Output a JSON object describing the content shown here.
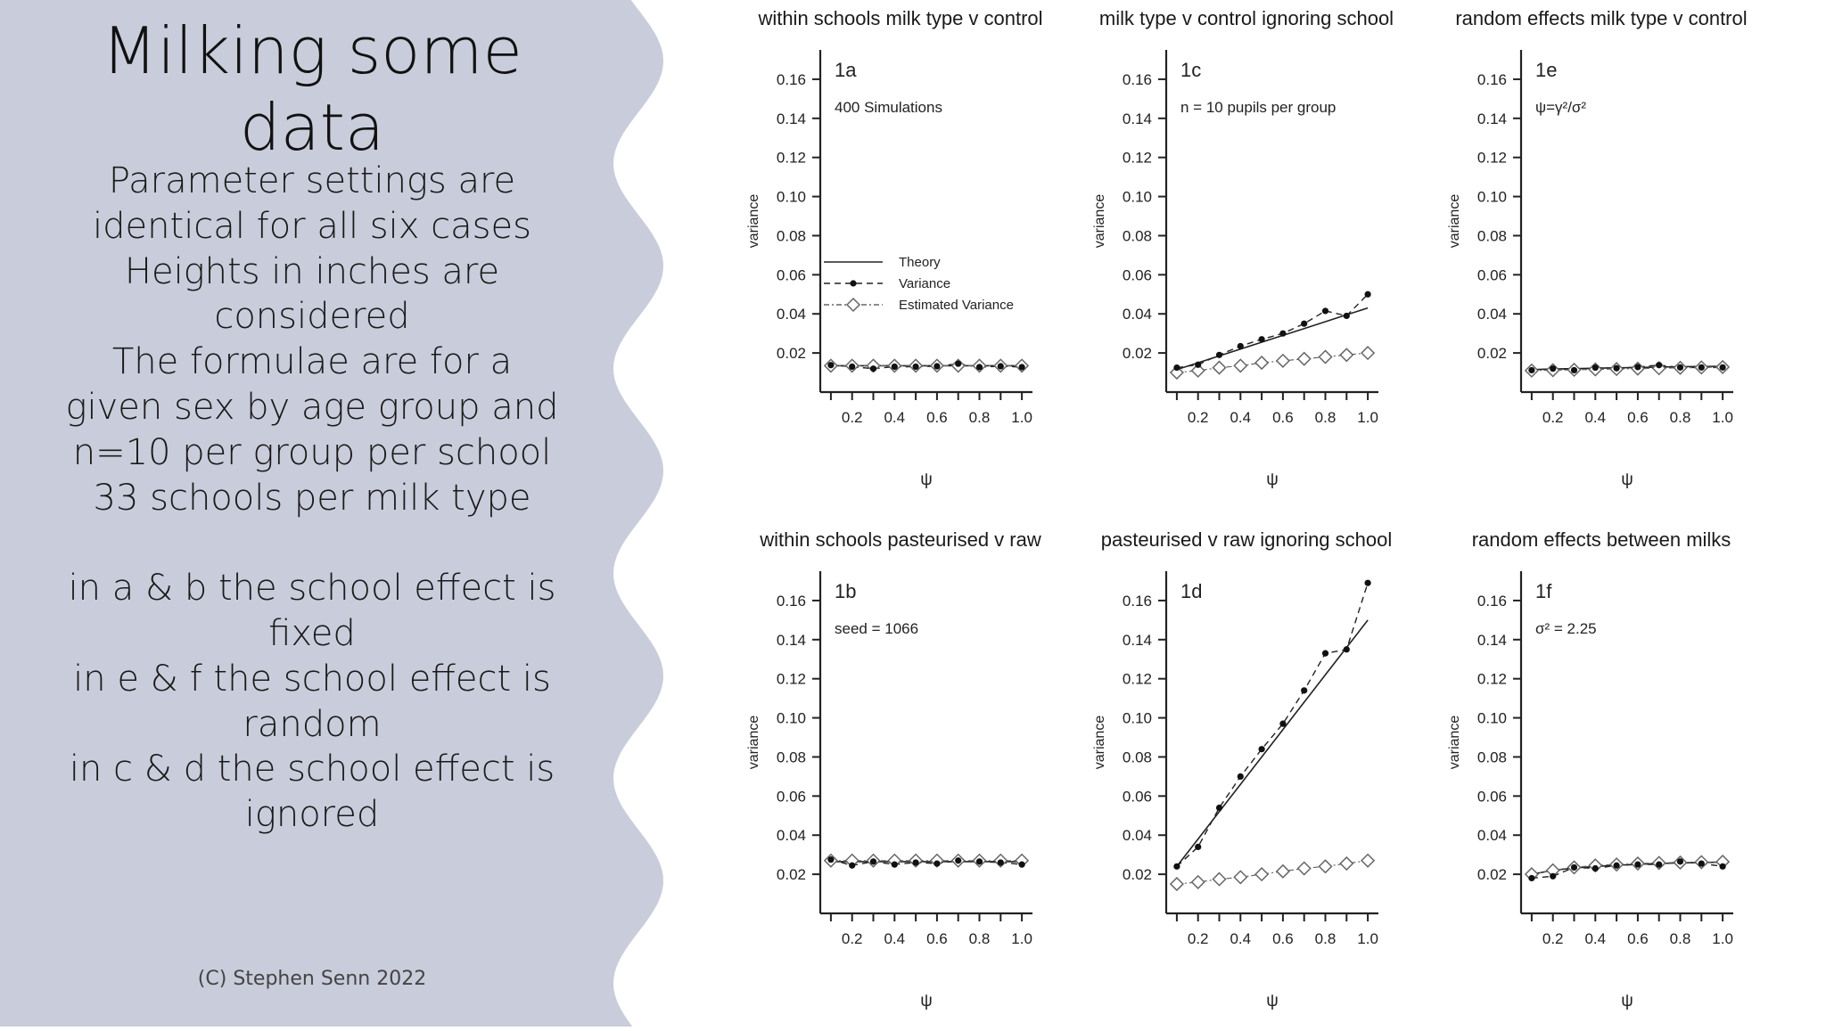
{
  "slide": {
    "title_lines": [
      "Milking some",
      "data"
    ],
    "body_lines": [
      "Parameter settings are",
      "identical for all six cases",
      "Heights in inches are",
      "considered",
      "The formulae are for a",
      "given sex by age group and",
      "n=10 per group per school",
      "33 schools per milk type",
      "",
      "in a & b the school effect is",
      "fixed",
      "in e & f the school effect is",
      "random",
      "in c & d the school effect is",
      "ignored"
    ],
    "copyright": "(C) Stephen Senn 2022",
    "colors": {
      "panel_bg": "#c9ccdb",
      "axis": "#222222",
      "marker": "#111111",
      "diamond": "#666666"
    }
  },
  "chart_data": [
    {
      "type": "line",
      "title": "within schools milk type v control",
      "panel_label": "1a",
      "annotation": "400 Simulations",
      "xlabel": "ψ",
      "ylabel": "variance",
      "xlim": [
        0.05,
        1.05
      ],
      "ylim": [
        0.0,
        0.175
      ],
      "xticks": [
        "0.2",
        "0.4",
        "0.6",
        "0.8",
        "1.0"
      ],
      "yticks": [
        "0.02",
        "0.04",
        "0.06",
        "0.08",
        "0.10",
        "0.12",
        "0.14",
        "0.16"
      ],
      "legend": {
        "position": "center-right",
        "entries": [
          "Theory",
          "Variance",
          "Estimated Variance"
        ]
      },
      "x": [
        0.1,
        0.2,
        0.3,
        0.4,
        0.5,
        0.6,
        0.7,
        0.8,
        0.9,
        1.0
      ],
      "series": [
        {
          "name": "Theory",
          "values": [
            0.0135,
            0.0135,
            0.0135,
            0.0135,
            0.0135,
            0.0135,
            0.0135,
            0.0135,
            0.0135,
            0.0135
          ]
        },
        {
          "name": "Variance",
          "values": [
            0.0138,
            0.013,
            0.012,
            0.013,
            0.013,
            0.0132,
            0.0145,
            0.0128,
            0.0132,
            0.0128
          ]
        },
        {
          "name": "Estimated Variance",
          "values": [
            0.0135,
            0.0135,
            0.0135,
            0.0135,
            0.0135,
            0.0135,
            0.0135,
            0.0135,
            0.0135,
            0.0135
          ]
        }
      ]
    },
    {
      "type": "line",
      "title": "milk type v control ignoring school",
      "panel_label": "1c",
      "annotation": "n = 10 pupils per group",
      "xlabel": "ψ",
      "ylabel": "variance",
      "xlim": [
        0.05,
        1.05
      ],
      "ylim": [
        0.0,
        0.175
      ],
      "xticks": [
        "0.2",
        "0.4",
        "0.6",
        "0.8",
        "1.0"
      ],
      "yticks": [
        "0.02",
        "0.04",
        "0.06",
        "0.08",
        "0.10",
        "0.12",
        "0.14",
        "0.16"
      ],
      "x": [
        0.1,
        0.2,
        0.3,
        0.4,
        0.5,
        0.6,
        0.7,
        0.8,
        0.9,
        1.0
      ],
      "series": [
        {
          "name": "Theory",
          "values": [
            0.0115,
            0.015,
            0.0185,
            0.022,
            0.0255,
            0.029,
            0.0325,
            0.036,
            0.0395,
            0.043
          ]
        },
        {
          "name": "Variance",
          "values": [
            0.0125,
            0.014,
            0.019,
            0.0235,
            0.027,
            0.03,
            0.035,
            0.0415,
            0.039,
            0.05
          ]
        },
        {
          "name": "Estimated Variance",
          "values": [
            0.01,
            0.011,
            0.0125,
            0.0135,
            0.015,
            0.016,
            0.017,
            0.018,
            0.019,
            0.02
          ]
        }
      ]
    },
    {
      "type": "line",
      "title": "random effects milk type v control",
      "panel_label": "1e",
      "annotation": "ψ=γ²/σ²",
      "xlabel": "ψ",
      "ylabel": "variance",
      "xlim": [
        0.05,
        1.05
      ],
      "ylim": [
        0.0,
        0.175
      ],
      "xticks": [
        "0.2",
        "0.4",
        "0.6",
        "0.8",
        "1.0"
      ],
      "yticks": [
        "0.02",
        "0.04",
        "0.06",
        "0.08",
        "0.10",
        "0.12",
        "0.14",
        "0.16"
      ],
      "x": [
        0.1,
        0.2,
        0.3,
        0.4,
        0.5,
        0.6,
        0.7,
        0.8,
        0.9,
        1.0
      ],
      "series": [
        {
          "name": "Theory",
          "values": [
            0.0115,
            0.0118,
            0.012,
            0.0122,
            0.0124,
            0.0126,
            0.0128,
            0.013,
            0.0131,
            0.0132
          ]
        },
        {
          "name": "Variance",
          "values": [
            0.0112,
            0.012,
            0.0112,
            0.0125,
            0.0122,
            0.0128,
            0.0138,
            0.0126,
            0.0126,
            0.0126
          ]
        },
        {
          "name": "Estimated Variance",
          "values": [
            0.011,
            0.0112,
            0.0114,
            0.0116,
            0.0118,
            0.012,
            0.0122,
            0.0124,
            0.0126,
            0.0128
          ]
        }
      ]
    },
    {
      "type": "line",
      "title": "within schools pasteurised v raw",
      "panel_label": "1b",
      "annotation": "seed = 1066",
      "xlabel": "ψ",
      "ylabel": "variance",
      "xlim": [
        0.05,
        1.05
      ],
      "ylim": [
        0.0,
        0.175
      ],
      "xticks": [
        "0.2",
        "0.4",
        "0.6",
        "0.8",
        "1.0"
      ],
      "yticks": [
        "0.02",
        "0.04",
        "0.06",
        "0.08",
        "0.10",
        "0.12",
        "0.14",
        "0.16"
      ],
      "x": [
        0.1,
        0.2,
        0.3,
        0.4,
        0.5,
        0.6,
        0.7,
        0.8,
        0.9,
        1.0
      ],
      "series": [
        {
          "name": "Theory",
          "values": [
            0.0265,
            0.0265,
            0.0265,
            0.0265,
            0.0265,
            0.0265,
            0.0265,
            0.0265,
            0.0265,
            0.0265
          ]
        },
        {
          "name": "Variance",
          "values": [
            0.0275,
            0.0245,
            0.0265,
            0.025,
            0.026,
            0.0255,
            0.027,
            0.0265,
            0.026,
            0.025
          ]
        },
        {
          "name": "Estimated Variance",
          "values": [
            0.027,
            0.027,
            0.027,
            0.027,
            0.027,
            0.027,
            0.027,
            0.027,
            0.027,
            0.027
          ]
        }
      ]
    },
    {
      "type": "line",
      "title": "pasteurised v raw ignoring school",
      "panel_label": "1d",
      "annotation": "",
      "xlabel": "ψ",
      "ylabel": "variance",
      "xlim": [
        0.05,
        1.05
      ],
      "ylim": [
        0.0,
        0.175
      ],
      "xticks": [
        "0.2",
        "0.4",
        "0.6",
        "0.8",
        "1.0"
      ],
      "yticks": [
        "0.02",
        "0.04",
        "0.06",
        "0.08",
        "0.10",
        "0.12",
        "0.14",
        "0.16"
      ],
      "x": [
        0.1,
        0.2,
        0.3,
        0.4,
        0.5,
        0.6,
        0.7,
        0.8,
        0.9,
        1.0
      ],
      "series": [
        {
          "name": "Theory",
          "values": [
            0.024,
            0.038,
            0.052,
            0.066,
            0.08,
            0.094,
            0.108,
            0.122,
            0.136,
            0.15
          ]
        },
        {
          "name": "Variance",
          "values": [
            0.024,
            0.034,
            0.054,
            0.07,
            0.084,
            0.097,
            0.114,
            0.133,
            0.135,
            0.169
          ]
        },
        {
          "name": "Estimated Variance",
          "values": [
            0.015,
            0.016,
            0.0175,
            0.0185,
            0.02,
            0.0215,
            0.023,
            0.024,
            0.0255,
            0.027
          ]
        }
      ]
    },
    {
      "type": "line",
      "title": "random effects between milks",
      "panel_label": "1f",
      "annotation": "σ² = 2.25",
      "xlabel": "ψ",
      "ylabel": "variance",
      "xlim": [
        0.05,
        1.05
      ],
      "ylim": [
        0.0,
        0.175
      ],
      "xticks": [
        "0.2",
        "0.4",
        "0.6",
        "0.8",
        "1.0"
      ],
      "yticks": [
        "0.02",
        "0.04",
        "0.06",
        "0.08",
        "0.10",
        "0.12",
        "0.14",
        "0.16"
      ],
      "x": [
        0.1,
        0.2,
        0.3,
        0.4,
        0.5,
        0.6,
        0.7,
        0.8,
        0.9,
        1.0
      ],
      "series": [
        {
          "name": "Theory",
          "values": [
            0.02,
            0.022,
            0.0232,
            0.024,
            0.0246,
            0.0251,
            0.0255,
            0.0258,
            0.026,
            0.0262
          ]
        },
        {
          "name": "Variance",
          "values": [
            0.018,
            0.019,
            0.0235,
            0.023,
            0.0245,
            0.025,
            0.025,
            0.0265,
            0.0255,
            0.024
          ]
        },
        {
          "name": "Estimated Variance",
          "values": [
            0.02,
            0.022,
            0.0235,
            0.0245,
            0.025,
            0.0255,
            0.0258,
            0.026,
            0.0262,
            0.0264
          ]
        }
      ]
    }
  ]
}
